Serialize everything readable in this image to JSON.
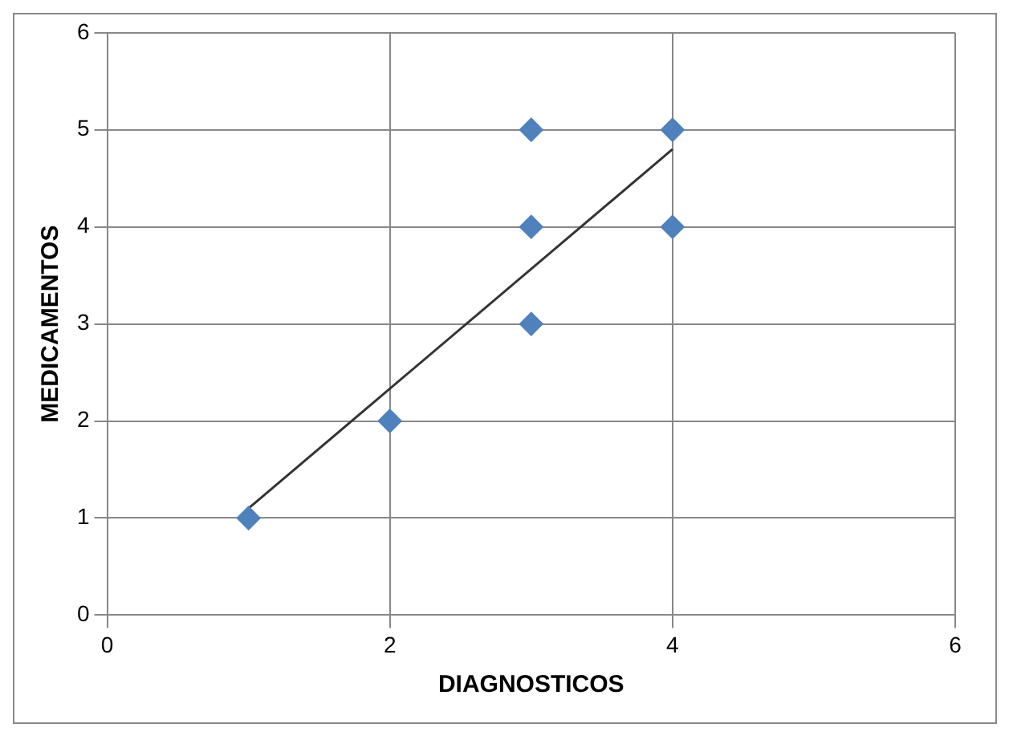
{
  "chart_data": {
    "type": "scatter",
    "xlabel": "DIAGNOSTICOS",
    "ylabel": "MEDICAMENTOS",
    "series": [
      {
        "type": "scatter",
        "color": "#4f81bd",
        "marker": "diamond",
        "x": [
          1,
          2,
          3,
          3,
          3,
          4,
          4
        ],
        "values": [
          1,
          2,
          3,
          4,
          5,
          4,
          5
        ]
      },
      {
        "type": "line",
        "color": "#333333",
        "marker": "none",
        "x": [
          1,
          4
        ],
        "values": [
          1.1,
          4.8
        ]
      }
    ],
    "xlim": [
      0,
      6
    ],
    "xticks": [
      0,
      2,
      4,
      6
    ],
    "ylim": [
      0,
      6
    ],
    "yticks": [
      0,
      1,
      2,
      3,
      4,
      5,
      6
    ],
    "grid": true,
    "legend": false
  }
}
